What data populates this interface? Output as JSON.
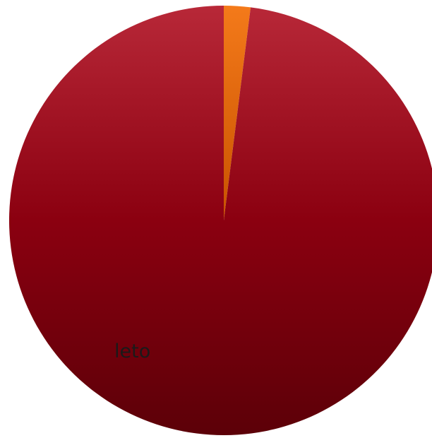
{
  "chart_data": {
    "type": "pie",
    "slices": [
      {
        "value": 98.0,
        "color": "#8B0010"
      },
      {
        "value": 2.0,
        "color": "#F07010"
      }
    ],
    "labels": [
      {
        "text": "leto"
      }
    ],
    "legend": "none"
  }
}
